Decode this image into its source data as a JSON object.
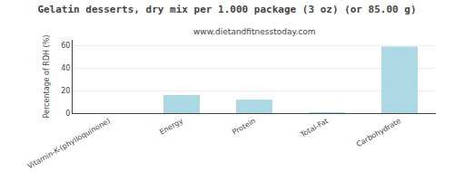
{
  "chart_data": {
    "type": "bar",
    "title": "Gelatin desserts, dry mix per 1.000 package (3 oz) (or 85.00 g)",
    "subtitle": "www.dietandfitnesstoday.com",
    "categories": [
      "Vitamin-K-(phylloquinone)",
      "Energy",
      "Protein",
      "Total-Fat",
      "Carbohydrate"
    ],
    "values": [
      0,
      16,
      12,
      0.5,
      59
    ],
    "color": "#add8e6",
    "ylabel": "Percentage of RDH (%)",
    "ylim": [
      0,
      65
    ],
    "yticks": [
      0,
      20,
      40,
      60
    ],
    "grid": true
  }
}
